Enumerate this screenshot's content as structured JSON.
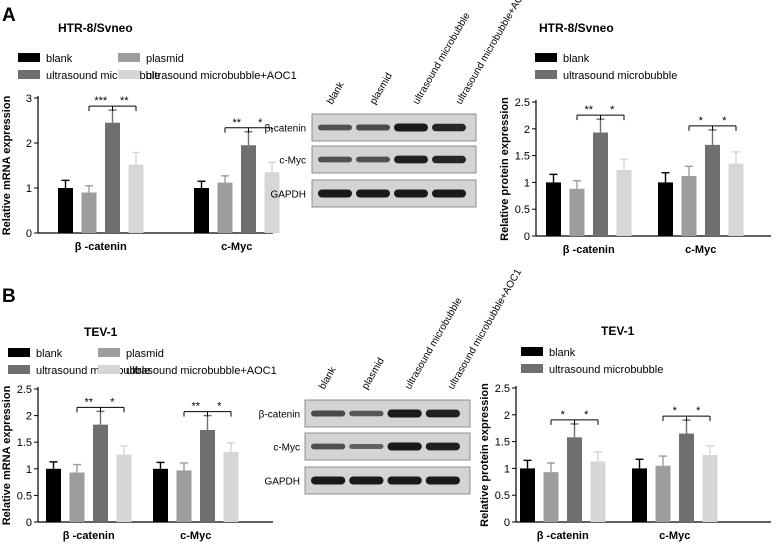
{
  "colors": {
    "blank": "#000000",
    "plasmid": "#9d9d9d",
    "ultrasound microbubble": "#6f6f6f",
    "ultrasound microbubble+AOC1": "#d6d6d6",
    "blot_bg": "#d4d4d4",
    "band": "#1a1a1a"
  },
  "panels": [
    {
      "letter": "A"
    },
    {
      "letter": "B"
    }
  ],
  "legend": [
    "blank",
    "plasmid",
    "ultrasound microbubble",
    "ultrasound microbubble+AOC1"
  ],
  "blots": [
    {
      "lanes": [
        "blank",
        "plasmid",
        "ultrasound microbubble",
        "ultrasound microbubble+AOC1"
      ],
      "rows": [
        {
          "label": "β-catenin",
          "intensity": [
            0.55,
            0.6,
            1.0,
            0.9
          ]
        },
        {
          "label": "c-Myc",
          "intensity": [
            0.55,
            0.55,
            0.95,
            0.9
          ]
        },
        {
          "label": "GAPDH",
          "intensity": [
            1.0,
            1.0,
            1.0,
            1.0
          ]
        }
      ]
    },
    {
      "lanes": [
        "blank",
        "plasmid",
        "ultrasound microbubble",
        "ultrasound microbubble+AOC1"
      ],
      "rows": [
        {
          "label": "β-catenin",
          "intensity": [
            0.6,
            0.5,
            1.0,
            0.95
          ]
        },
        {
          "label": "c-Myc",
          "intensity": [
            0.55,
            0.4,
            1.0,
            0.95
          ]
        },
        {
          "label": "GAPDH",
          "intensity": [
            1.0,
            1.0,
            1.0,
            1.0
          ]
        }
      ]
    }
  ],
  "chart_data": [
    {
      "type": "bar",
      "title": "HTR-8/Svneo",
      "ylabel": "Relative mRNA expression",
      "ylim": [
        0,
        3
      ],
      "yticks": [
        0,
        1,
        2,
        3
      ],
      "categories": [
        "β -catenin",
        "c-Myc"
      ],
      "series": [
        {
          "name": "blank",
          "values": [
            1.0,
            1.0
          ],
          "errors": [
            0.17,
            0.15
          ]
        },
        {
          "name": "plasmid",
          "values": [
            0.9,
            1.12
          ],
          "errors": [
            0.15,
            0.15
          ]
        },
        {
          "name": "ultrasound microbubble",
          "values": [
            2.45,
            1.95
          ],
          "errors": [
            0.28,
            0.3
          ]
        },
        {
          "name": "ultrasound microbubble+AOC1",
          "values": [
            1.52,
            1.35
          ],
          "errors": [
            0.27,
            0.22
          ]
        }
      ],
      "significance": [
        {
          "category": 0,
          "left": "***",
          "right": "**"
        },
        {
          "category": 1,
          "left": "**",
          "right": "*"
        }
      ]
    },
    {
      "type": "bar",
      "title": "HTR-8/Svneo",
      "ylabel": "Relative protein expression",
      "ylim": [
        0,
        2.5
      ],
      "yticks": [
        0,
        0.5,
        1.0,
        1.5,
        2.0,
        2.5
      ],
      "categories": [
        "β -catenin",
        "c-Myc"
      ],
      "series": [
        {
          "name": "blank",
          "values": [
            1.0,
            1.0
          ],
          "errors": [
            0.15,
            0.18
          ]
        },
        {
          "name": "plasmid",
          "values": [
            0.88,
            1.12
          ],
          "errors": [
            0.15,
            0.18
          ]
        },
        {
          "name": "ultrasound microbubble",
          "values": [
            1.93,
            1.7
          ],
          "errors": [
            0.25,
            0.28
          ]
        },
        {
          "name": "ultrasound microbubble+AOC1",
          "values": [
            1.23,
            1.35
          ],
          "errors": [
            0.2,
            0.22
          ]
        }
      ],
      "significance": [
        {
          "category": 0,
          "left": "**",
          "right": "*"
        },
        {
          "category": 1,
          "left": "*",
          "right": "*"
        }
      ]
    },
    {
      "type": "bar",
      "title": "TEV-1",
      "ylabel": "Relative mRNA expression",
      "ylim": [
        0,
        2.5
      ],
      "yticks": [
        0,
        0.5,
        1.0,
        1.5,
        2.0,
        2.5
      ],
      "categories": [
        "β -catenin",
        "c-Myc"
      ],
      "series": [
        {
          "name": "blank",
          "values": [
            1.0,
            1.0
          ],
          "errors": [
            0.13,
            0.12
          ]
        },
        {
          "name": "plasmid",
          "values": [
            0.93,
            0.97
          ],
          "errors": [
            0.15,
            0.14
          ]
        },
        {
          "name": "ultrasound microbubble",
          "values": [
            1.83,
            1.73
          ],
          "errors": [
            0.25,
            0.27
          ]
        },
        {
          "name": "ultrasound microbubble+AOC1",
          "values": [
            1.27,
            1.32
          ],
          "errors": [
            0.16,
            0.17
          ]
        }
      ],
      "significance": [
        {
          "category": 0,
          "left": "**",
          "right": "*"
        },
        {
          "category": 1,
          "left": "**",
          "right": "*"
        }
      ]
    },
    {
      "type": "bar",
      "title": "TEV-1",
      "ylabel": "Relative protein expression",
      "ylim": [
        0,
        2.5
      ],
      "yticks": [
        0,
        0.5,
        1.0,
        1.5,
        2.0,
        2.5
      ],
      "categories": [
        "β -catenin",
        "c-Myc"
      ],
      "series": [
        {
          "name": "blank",
          "values": [
            1.0,
            1.0
          ],
          "errors": [
            0.15,
            0.17
          ]
        },
        {
          "name": "plasmid",
          "values": [
            0.93,
            1.05
          ],
          "errors": [
            0.17,
            0.18
          ]
        },
        {
          "name": "ultrasound microbubble",
          "values": [
            1.58,
            1.65
          ],
          "errors": [
            0.25,
            0.25
          ]
        },
        {
          "name": "ultrasound microbubble+AOC1",
          "values": [
            1.13,
            1.25
          ],
          "errors": [
            0.18,
            0.17
          ]
        }
      ],
      "significance": [
        {
          "category": 0,
          "left": "*",
          "right": "*"
        },
        {
          "category": 1,
          "left": "*",
          "right": "*"
        }
      ]
    }
  ]
}
